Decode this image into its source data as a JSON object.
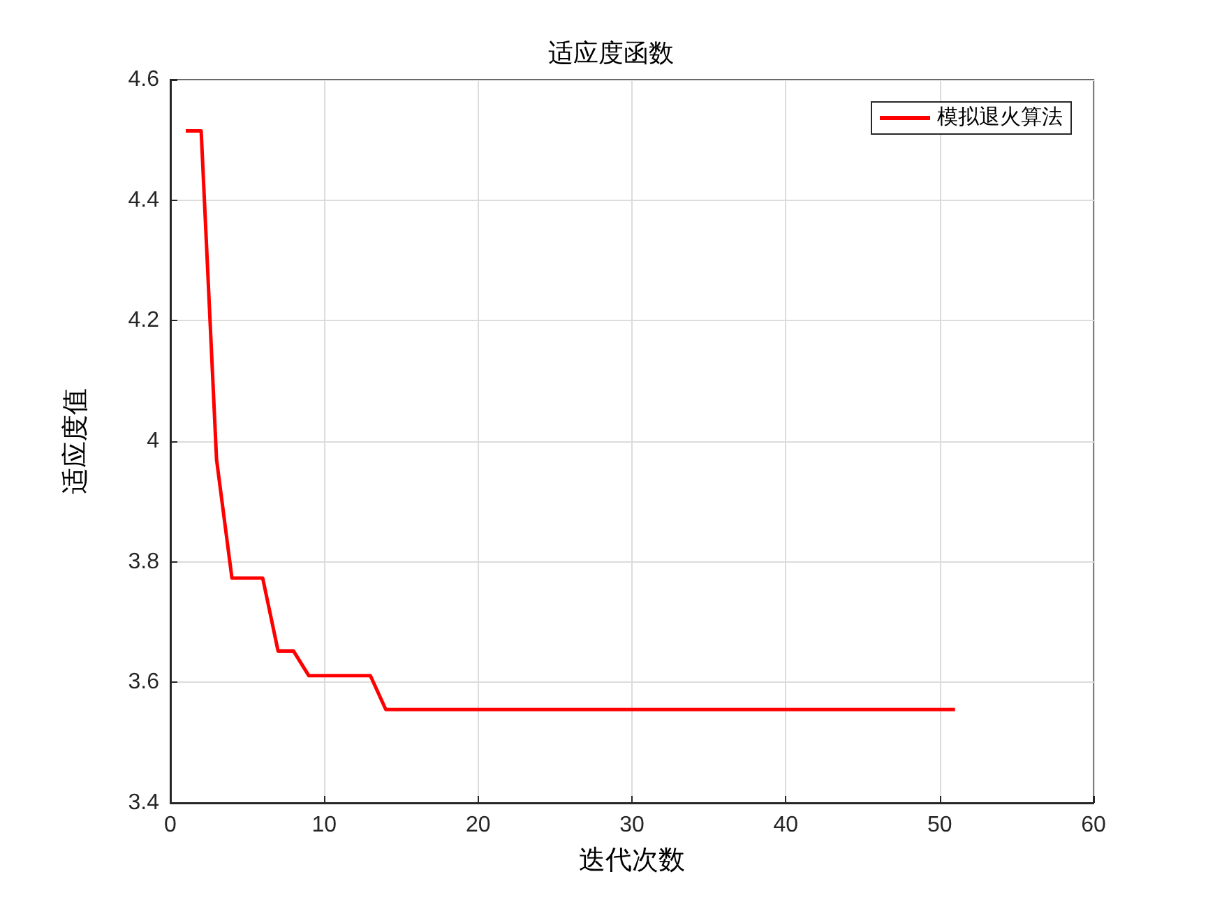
{
  "chart_data": {
    "type": "line",
    "title": "适应度函数",
    "xlabel": "迭代次数",
    "ylabel": "适应度值",
    "x": [
      1,
      2,
      3,
      4,
      5,
      6,
      7,
      8,
      9,
      10,
      11,
      12,
      13,
      14,
      15,
      20,
      30,
      40,
      51
    ],
    "series": [
      {
        "name": "模拟退火算法",
        "color": "#ff0000",
        "values": [
          4.515,
          4.515,
          3.97,
          3.773,
          3.773,
          3.773,
          3.652,
          3.652,
          3.611,
          3.611,
          3.611,
          3.611,
          3.611,
          3.555,
          3.555,
          3.555,
          3.555,
          3.555,
          3.555
        ]
      }
    ],
    "xlim": [
      0,
      60
    ],
    "xticks": [
      0,
      10,
      20,
      30,
      40,
      50,
      60
    ],
    "ylim": [
      3.4,
      4.6
    ],
    "yticks": [
      3.4,
      3.6,
      3.8,
      4,
      4.2,
      4.4,
      4.6
    ],
    "grid": true,
    "legend": "top right",
    "marker": "none",
    "line_style": "solid"
  }
}
